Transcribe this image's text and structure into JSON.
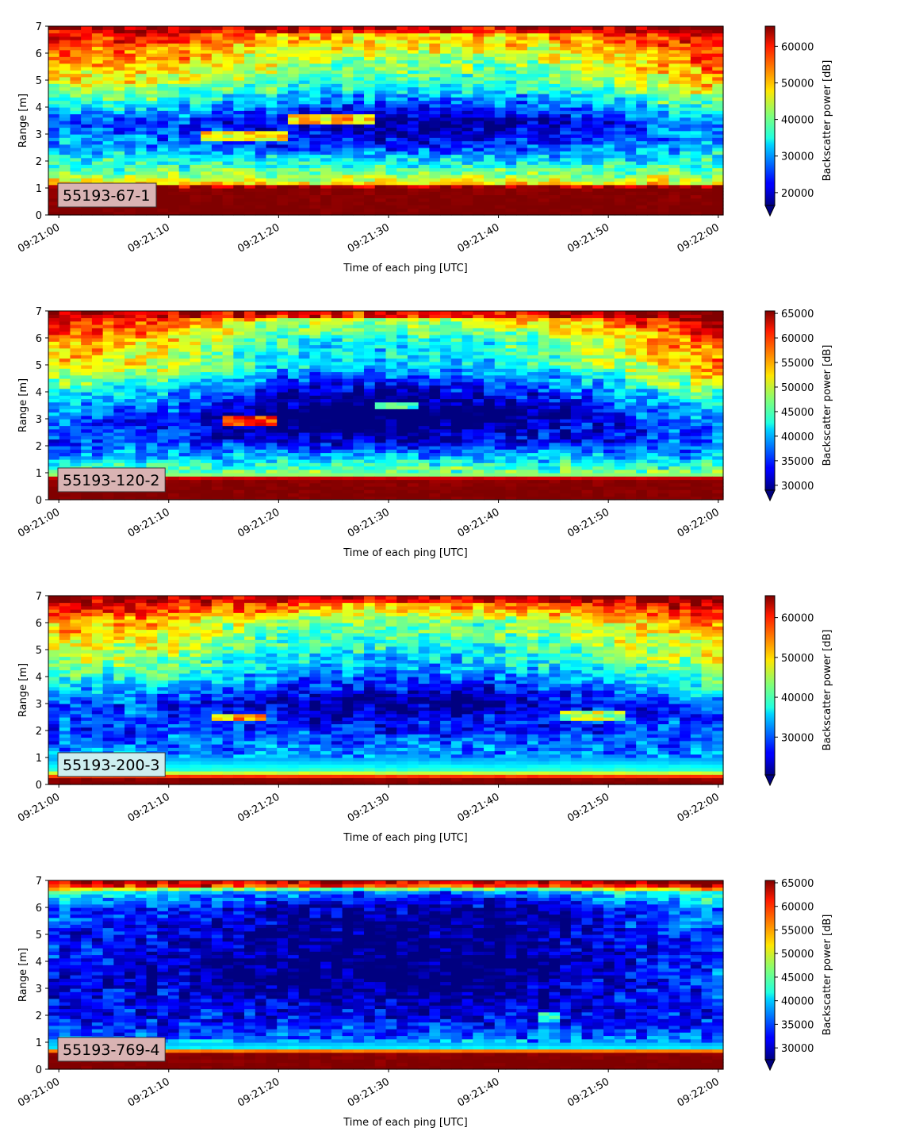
{
  "chart_data": [
    {
      "type": "heatmap",
      "panel_label": "55193-67-1",
      "label_box_color": "#d9b3b3",
      "xlabel": "Time of each ping [UTC]",
      "ylabel": "Range [m]",
      "xticks": [
        "09:21:00",
        "09:21:10",
        "09:21:20",
        "09:21:30",
        "09:21:40",
        "09:21:50",
        "09:22:00"
      ],
      "xlim_seconds": [
        0,
        60
      ],
      "ylim": [
        0,
        7
      ],
      "yticks": [
        0,
        1,
        2,
        3,
        4,
        5,
        6,
        7
      ],
      "colorbar": {
        "label": "Backscatter power [dB]",
        "colormap": "jet",
        "range": [
          16500,
          65500
        ],
        "ticks": [
          20000,
          30000,
          40000,
          50000,
          60000
        ],
        "extend": "min"
      },
      "profile": [
        {
          "range": 0.0,
          "value": 65500
        },
        {
          "range": 0.2,
          "value": 65500
        },
        {
          "range": 1.05,
          "value": 65000
        },
        {
          "range": 1.2,
          "value": 47000
        },
        {
          "range": 1.6,
          "value": 40000
        },
        {
          "range": 2.0,
          "value": 36000
        },
        {
          "range": 2.5,
          "value": 31000
        },
        {
          "range": 3.5,
          "value": 27000
        },
        {
          "range": 4.2,
          "value": 38000
        },
        {
          "range": 5.0,
          "value": 48000
        },
        {
          "range": 6.0,
          "value": 54000
        },
        {
          "range": 6.7,
          "value": 60000
        },
        {
          "range": 7.0,
          "value": 65500
        }
      ],
      "upper_trend": [
        0,
        -2000,
        -8000,
        -10000,
        -10000,
        -5000,
        3000
      ],
      "features": [
        {
          "t_start": 13,
          "t_end": 21,
          "range": 2.95,
          "value": 47000
        },
        {
          "t_start": 21,
          "t_end": 29,
          "range": 3.55,
          "value": 50000
        }
      ]
    },
    {
      "type": "heatmap",
      "panel_label": "55193-120-2",
      "label_box_color": "#d9b3b3",
      "xlabel": "Time of each ping [UTC]",
      "ylabel": "Range [m]",
      "xticks": [
        "09:21:00",
        "09:21:10",
        "09:21:20",
        "09:21:30",
        "09:21:40",
        "09:21:50",
        "09:22:00"
      ],
      "xlim_seconds": [
        0,
        60
      ],
      "ylim": [
        0,
        7
      ],
      "yticks": [
        0,
        1,
        2,
        3,
        4,
        5,
        6,
        7
      ],
      "colorbar": {
        "label": "Backscatter power [dB]",
        "colormap": "jet",
        "range": [
          29000,
          65500
        ],
        "ticks": [
          30000,
          35000,
          40000,
          45000,
          50000,
          55000,
          60000,
          65000
        ],
        "extend": "min"
      },
      "profile": [
        {
          "range": 0.0,
          "value": 65500
        },
        {
          "range": 0.2,
          "value": 65500
        },
        {
          "range": 0.8,
          "value": 65000
        },
        {
          "range": 0.9,
          "value": 48000
        },
        {
          "range": 1.3,
          "value": 44000
        },
        {
          "range": 1.6,
          "value": 40000
        },
        {
          "range": 2.2,
          "value": 36000
        },
        {
          "range": 3.0,
          "value": 37000
        },
        {
          "range": 4.0,
          "value": 44000
        },
        {
          "range": 5.0,
          "value": 53000
        },
        {
          "range": 6.0,
          "value": 56000
        },
        {
          "range": 6.6,
          "value": 62000
        },
        {
          "range": 7.0,
          "value": 65500
        }
      ],
      "upper_trend": [
        0,
        -3000,
        -12000,
        -13000,
        -11000,
        -5000,
        3000
      ],
      "features": [
        {
          "t_start": 15,
          "t_end": 20,
          "range": 2.95,
          "value": 60000
        },
        {
          "t_start": 29,
          "t_end": 33,
          "range": 3.5,
          "value": 46000
        }
      ]
    },
    {
      "type": "heatmap",
      "panel_label": "55193-200-3",
      "label_box_color": "#cdeef0",
      "xlabel": "Time of each ping [UTC]",
      "ylabel": "Range [m]",
      "xticks": [
        "09:21:00",
        "09:21:10",
        "09:21:20",
        "09:21:30",
        "09:21:40",
        "09:21:50",
        "09:22:00"
      ],
      "xlim_seconds": [
        0,
        60
      ],
      "ylim": [
        0,
        7
      ],
      "yticks": [
        0,
        1,
        2,
        3,
        4,
        5,
        6,
        7
      ],
      "colorbar": {
        "label": "Backscatter power [dB]",
        "colormap": "jet",
        "range": [
          20500,
          65500
        ],
        "ticks": [
          30000,
          40000,
          50000,
          60000
        ],
        "extend": "min"
      },
      "profile": [
        {
          "range": 0.0,
          "value": 65500
        },
        {
          "range": 0.2,
          "value": 65000
        },
        {
          "range": 0.35,
          "value": 55000
        },
        {
          "range": 0.5,
          "value": 40000
        },
        {
          "range": 1.0,
          "value": 33000
        },
        {
          "range": 2.0,
          "value": 29000
        },
        {
          "range": 3.0,
          "value": 30000
        },
        {
          "range": 4.0,
          "value": 40000
        },
        {
          "range": 5.0,
          "value": 47000
        },
        {
          "range": 6.0,
          "value": 52000
        },
        {
          "range": 6.5,
          "value": 60000
        },
        {
          "range": 7.0,
          "value": 65500
        }
      ],
      "upper_trend": [
        0,
        -2000,
        -8000,
        -10000,
        -9000,
        -4000,
        2000
      ],
      "features": [
        {
          "t_start": 14,
          "t_end": 19,
          "range": 2.5,
          "value": 52000
        },
        {
          "t_start": 46,
          "t_end": 52,
          "range": 2.6,
          "value": 45000
        }
      ]
    },
    {
      "type": "heatmap",
      "panel_label": "55193-769-4",
      "label_box_color": "#d9b3b3",
      "xlabel": "Time of each ping [UTC]",
      "ylabel": "Range [m]",
      "xticks": [
        "09:21:00",
        "09:21:10",
        "09:21:20",
        "09:21:30",
        "09:21:40",
        "09:21:50",
        "09:22:00"
      ],
      "xlim_seconds": [
        0,
        60
      ],
      "ylim": [
        0,
        7
      ],
      "yticks": [
        0,
        1,
        2,
        3,
        4,
        5,
        6,
        7
      ],
      "colorbar": {
        "label": "Backscatter power [dB]",
        "colormap": "jet",
        "range": [
          27500,
          65500
        ],
        "ticks": [
          30000,
          35000,
          40000,
          45000,
          50000,
          55000,
          60000,
          65000
        ],
        "extend": "min"
      },
      "profile": [
        {
          "range": 0.0,
          "value": 65500
        },
        {
          "range": 0.2,
          "value": 65500
        },
        {
          "range": 0.65,
          "value": 65000
        },
        {
          "range": 0.75,
          "value": 42000
        },
        {
          "range": 1.2,
          "value": 36000
        },
        {
          "range": 2.0,
          "value": 32000
        },
        {
          "range": 3.5,
          "value": 30000
        },
        {
          "range": 5.0,
          "value": 31000
        },
        {
          "range": 6.0,
          "value": 33000
        },
        {
          "range": 6.6,
          "value": 40000
        },
        {
          "range": 6.8,
          "value": 60000
        },
        {
          "range": 7.0,
          "value": 65500
        }
      ],
      "upper_trend": [
        2000,
        0,
        -3000,
        -4000,
        -4000,
        0,
        5000
      ],
      "features": [
        {
          "t_start": 44,
          "t_end": 46,
          "range": 1.9,
          "value": 42000
        }
      ]
    }
  ]
}
